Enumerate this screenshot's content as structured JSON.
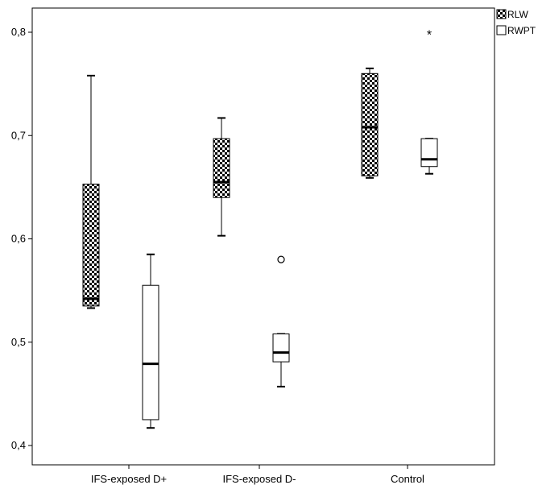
{
  "chart_data": {
    "type": "boxplot",
    "title": "",
    "xlabel": "",
    "ylabel": "",
    "ylim": [
      0.38,
      0.83
    ],
    "yticks": [
      0.4,
      0.5,
      0.6,
      0.7,
      0.8
    ],
    "ytick_labels": [
      "0,4",
      "0,5",
      "0,6",
      "0,7",
      "0,8"
    ],
    "grid": false,
    "legend_position": "top-right",
    "categories": [
      "IFS-exposed D+",
      "IFS-exposed D-",
      "Control"
    ],
    "series": [
      {
        "name": "RLW",
        "pattern": "checkered",
        "color": "#000000",
        "boxes": [
          {
            "min": 0.533,
            "q1": 0.535,
            "median": 0.542,
            "q3": 0.653,
            "max": 0.758,
            "outliers": [],
            "extremes": []
          },
          {
            "min": 0.603,
            "q1": 0.64,
            "median": 0.655,
            "q3": 0.697,
            "max": 0.717,
            "outliers": [],
            "extremes": []
          },
          {
            "min": 0.659,
            "q1": 0.661,
            "median": 0.708,
            "q3": 0.76,
            "max": 0.765,
            "outliers": [],
            "extremes": []
          }
        ]
      },
      {
        "name": "RWPT",
        "pattern": "none",
        "color": "#ffffff",
        "boxes": [
          {
            "min": 0.417,
            "q1": 0.425,
            "median": 0.479,
            "q3": 0.555,
            "max": 0.585,
            "outliers": [],
            "extremes": []
          },
          {
            "min": 0.457,
            "q1": 0.481,
            "median": 0.49,
            "q3": 0.508,
            "max": 0.508,
            "outliers": [
              0.58
            ],
            "extremes": []
          },
          {
            "min": 0.663,
            "q1": 0.67,
            "median": 0.677,
            "q3": 0.697,
            "max": 0.697,
            "outliers": [],
            "extremes": [
              0.798
            ]
          }
        ]
      }
    ]
  }
}
